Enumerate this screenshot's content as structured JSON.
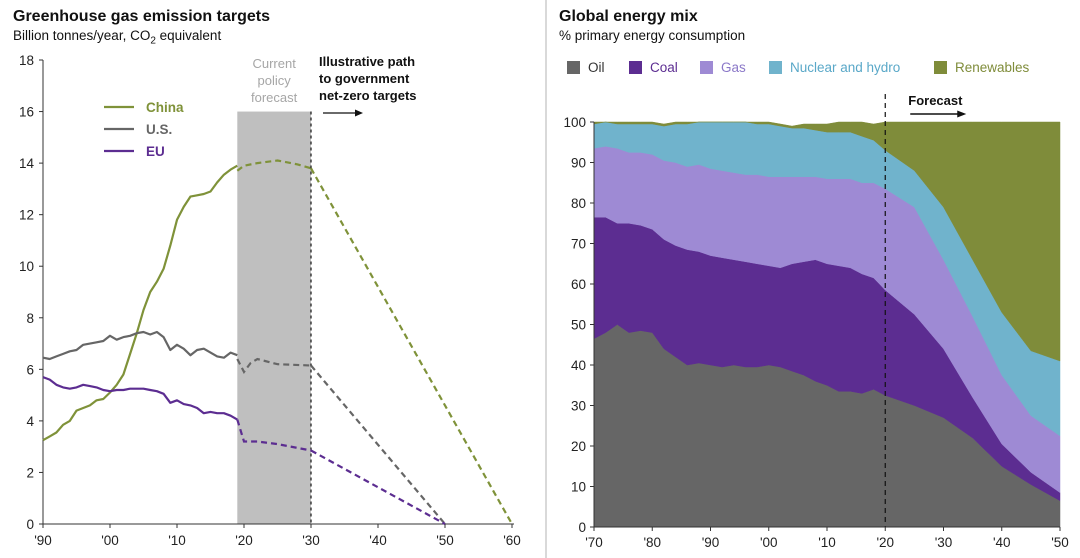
{
  "chart_data": [
    {
      "type": "line",
      "title": "Greenhouse gas emission targets",
      "subtitle_prefix": "Billion tonnes/year, CO",
      "subtitle_sub": "2",
      "subtitle_suffix": " equivalent",
      "ylim": [
        0,
        18
      ],
      "yticks": [
        0,
        2,
        4,
        6,
        8,
        10,
        12,
        14,
        16,
        18
      ],
      "xlim": [
        1990,
        2060
      ],
      "xticks": [
        {
          "value": 1990,
          "label": "'90"
        },
        {
          "value": 2000,
          "label": "'00"
        },
        {
          "value": 2010,
          "label": "'10"
        },
        {
          "value": 2020,
          "label": "'20"
        },
        {
          "value": 2030,
          "label": "'30"
        },
        {
          "value": 2040,
          "label": "'40"
        },
        {
          "value": 2050,
          "label": "'50"
        },
        {
          "value": 2060,
          "label": "'60"
        }
      ],
      "shaded_region": {
        "from": 2019,
        "to": 2030,
        "label": [
          "Current",
          "policy",
          "forecast"
        ]
      },
      "vline": {
        "x": 2030,
        "label": [
          "Illustrative path",
          "to government",
          "net-zero targets"
        ]
      },
      "series": [
        {
          "name": "China",
          "color": "#7f9239",
          "historical": [
            [
              1990,
              3.25
            ],
            [
              1991,
              3.4
            ],
            [
              1992,
              3.55
            ],
            [
              1993,
              3.85
            ],
            [
              1994,
              4.0
            ],
            [
              1995,
              4.4
            ],
            [
              1996,
              4.5
            ],
            [
              1997,
              4.6
            ],
            [
              1998,
              4.8
            ],
            [
              1999,
              4.85
            ],
            [
              2000,
              5.1
            ],
            [
              2001,
              5.4
            ],
            [
              2002,
              5.8
            ],
            [
              2003,
              6.6
            ],
            [
              2004,
              7.4
            ],
            [
              2005,
              8.3
            ],
            [
              2006,
              9.0
            ],
            [
              2007,
              9.4
            ],
            [
              2008,
              9.9
            ],
            [
              2009,
              10.8
            ],
            [
              2010,
              11.8
            ],
            [
              2011,
              12.3
            ],
            [
              2012,
              12.7
            ],
            [
              2013,
              12.75
            ],
            [
              2014,
              12.8
            ],
            [
              2015,
              12.9
            ],
            [
              2016,
              13.25
            ],
            [
              2017,
              13.55
            ],
            [
              2018,
              13.75
            ],
            [
              2019,
              13.9
            ]
          ],
          "forecast": [
            [
              2019,
              13.7
            ],
            [
              2020,
              13.9
            ],
            [
              2022,
              14.0
            ],
            [
              2025,
              14.1
            ],
            [
              2028,
              13.95
            ],
            [
              2030,
              13.8
            ]
          ],
          "path": [
            [
              2030,
              13.8
            ],
            [
              2060,
              0
            ]
          ]
        },
        {
          "name": "U.S.",
          "color": "#666666",
          "historical": [
            [
              1990,
              6.45
            ],
            [
              1991,
              6.4
            ],
            [
              1992,
              6.5
            ],
            [
              1993,
              6.6
            ],
            [
              1994,
              6.7
            ],
            [
              1995,
              6.75
            ],
            [
              1996,
              6.95
            ],
            [
              1997,
              7.0
            ],
            [
              1998,
              7.05
            ],
            [
              1999,
              7.1
            ],
            [
              2000,
              7.3
            ],
            [
              2001,
              7.15
            ],
            [
              2002,
              7.25
            ],
            [
              2003,
              7.3
            ],
            [
              2004,
              7.4
            ],
            [
              2005,
              7.45
            ],
            [
              2006,
              7.35
            ],
            [
              2007,
              7.45
            ],
            [
              2008,
              7.25
            ],
            [
              2009,
              6.75
            ],
            [
              2010,
              6.95
            ],
            [
              2011,
              6.8
            ],
            [
              2012,
              6.55
            ],
            [
              2013,
              6.75
            ],
            [
              2014,
              6.8
            ],
            [
              2015,
              6.65
            ],
            [
              2016,
              6.5
            ],
            [
              2017,
              6.45
            ],
            [
              2018,
              6.65
            ],
            [
              2019,
              6.55
            ]
          ],
          "forecast": [
            [
              2019,
              6.4
            ],
            [
              2020,
              5.9
            ],
            [
              2021,
              6.25
            ],
            [
              2022,
              6.4
            ],
            [
              2025,
              6.2
            ],
            [
              2030,
              6.15
            ]
          ],
          "path": [
            [
              2030,
              6.15
            ],
            [
              2050,
              0
            ]
          ]
        },
        {
          "name": "EU",
          "color": "#5c2d91",
          "historical": [
            [
              1990,
              5.7
            ],
            [
              1991,
              5.6
            ],
            [
              1992,
              5.4
            ],
            [
              1993,
              5.3
            ],
            [
              1994,
              5.25
            ],
            [
              1995,
              5.3
            ],
            [
              1996,
              5.4
            ],
            [
              1997,
              5.35
            ],
            [
              1998,
              5.3
            ],
            [
              1999,
              5.2
            ],
            [
              2000,
              5.15
            ],
            [
              2001,
              5.2
            ],
            [
              2002,
              5.2
            ],
            [
              2003,
              5.25
            ],
            [
              2004,
              5.25
            ],
            [
              2005,
              5.25
            ],
            [
              2006,
              5.2
            ],
            [
              2007,
              5.15
            ],
            [
              2008,
              5.05
            ],
            [
              2009,
              4.7
            ],
            [
              2010,
              4.8
            ],
            [
              2011,
              4.65
            ],
            [
              2012,
              4.6
            ],
            [
              2013,
              4.5
            ],
            [
              2014,
              4.3
            ],
            [
              2015,
              4.35
            ],
            [
              2016,
              4.3
            ],
            [
              2017,
              4.3
            ],
            [
              2018,
              4.2
            ],
            [
              2019,
              4.05
            ]
          ],
          "forecast": [
            [
              2019,
              4.05
            ],
            [
              2020,
              3.2
            ],
            [
              2022,
              3.2
            ],
            [
              2025,
              3.1
            ],
            [
              2030,
              2.85
            ]
          ],
          "path": [
            [
              2030,
              2.85
            ],
            [
              2050,
              0
            ]
          ]
        }
      ]
    },
    {
      "type": "area",
      "stacked": true,
      "title": "Global energy mix",
      "subtitle": "% primary energy consumption",
      "ylim": [
        0,
        100
      ],
      "yticks": [
        0,
        10,
        20,
        30,
        40,
        50,
        60,
        70,
        80,
        90,
        100
      ],
      "xlim": [
        1970,
        2050
      ],
      "xticks": [
        {
          "value": 1970,
          "label": "'70"
        },
        {
          "value": 1980,
          "label": "'80"
        },
        {
          "value": 1990,
          "label": "'90"
        },
        {
          "value": 2000,
          "label": "'00"
        },
        {
          "value": 2010,
          "label": "'10"
        },
        {
          "value": 2020,
          "label": "'20"
        },
        {
          "value": 2030,
          "label": "'30"
        },
        {
          "value": 2040,
          "label": "'40"
        },
        {
          "value": 2050,
          "label": "'50"
        }
      ],
      "vline": {
        "x": 2020,
        "label": "Forecast"
      },
      "x": [
        1970,
        1972,
        1974,
        1976,
        1978,
        1980,
        1982,
        1984,
        1986,
        1988,
        1990,
        1992,
        1994,
        1996,
        1998,
        2000,
        2002,
        2004,
        2006,
        2008,
        2010,
        2012,
        2014,
        2016,
        2018,
        2020,
        2025,
        2030,
        2035,
        2040,
        2045,
        2050
      ],
      "series": [
        {
          "name": "Oil",
          "color": "#666666",
          "label_color": "#333333",
          "values": [
            46.5,
            48,
            50,
            48,
            48.5,
            48,
            44,
            42,
            40,
            40.5,
            40,
            39.5,
            40,
            39.5,
            39.5,
            40,
            39.5,
            38.5,
            37.5,
            36,
            35,
            33.5,
            33.5,
            33,
            34,
            32.5,
            30,
            27,
            22,
            15,
            10.5,
            6.5
          ]
        },
        {
          "name": "Coal",
          "color": "#5c2d91",
          "label_color": "#5c2d91",
          "values": [
            30,
            28.5,
            25,
            27,
            26,
            25.5,
            27,
            27.5,
            28.5,
            27.5,
            27,
            27,
            26,
            26,
            25.5,
            24.5,
            24.5,
            26.5,
            28,
            30,
            30,
            31,
            30.5,
            29.5,
            27.5,
            26,
            22.5,
            17,
            10,
            5.5,
            3,
            2
          ]
        },
        {
          "name": "Gas",
          "color": "#9e8ad4",
          "label_color": "#8b78c8",
          "values": [
            17,
            17.5,
            18.5,
            17.5,
            18,
            18.5,
            19.5,
            20.5,
            20.5,
            21.5,
            21.5,
            21.5,
            21.5,
            21.5,
            22,
            22,
            22.5,
            21.5,
            21,
            20.5,
            21,
            21.5,
            22,
            22.5,
            23.5,
            25,
            26.5,
            22,
            20,
            17,
            14,
            14
          ]
        },
        {
          "name": "Nuclear and hydro",
          "color": "#70b3cc",
          "label_color": "#5aa8c8",
          "values": [
            6,
            6,
            6,
            7,
            7,
            7.5,
            8.5,
            9.5,
            10.5,
            11,
            12,
            12,
            12.5,
            13,
            12.5,
            13,
            12.5,
            12,
            12,
            11.5,
            11.5,
            11.5,
            11.5,
            11.5,
            10.5,
            9.5,
            9,
            13,
            14,
            15.5,
            16,
            18.5
          ]
        },
        {
          "name": "Renewables",
          "color": "#7f8c3a",
          "label_color": "#7f8c3a",
          "values": [
            0.5,
            0,
            0.5,
            0.5,
            0.5,
            0.5,
            0.5,
            0.5,
            0.5,
            0.5,
            0.5,
            0.5,
            0.5,
            0.5,
            0.5,
            0.5,
            0.5,
            0.5,
            1,
            1.5,
            2,
            2.5,
            2.5,
            3.5,
            4,
            7,
            12,
            21,
            34,
            47,
            56.5,
            59
          ]
        }
      ]
    }
  ]
}
